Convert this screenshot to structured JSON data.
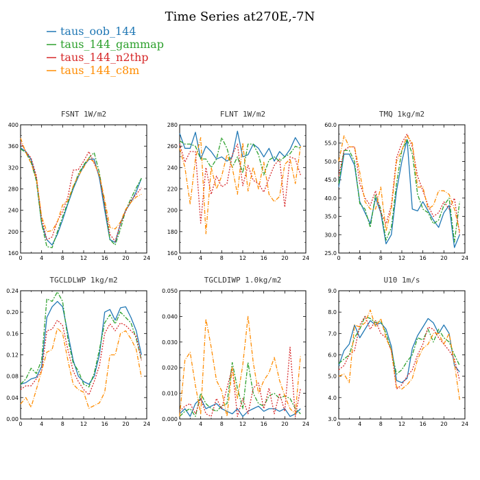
{
  "title": "Time Series at270E,-7N",
  "series_colors": [
    "#1f77b4",
    "#2ca02c",
    "#d62728",
    "#ff8c00"
  ],
  "legend": [
    "taus_oob_144",
    "taus_144_gammap",
    "taus_144_n2thp",
    "taus_144_c8m"
  ],
  "chart_data": [
    {
      "type": "line",
      "title": "FSNT  1W/m2",
      "xlim": [
        0,
        24
      ],
      "ylim": [
        160,
        400
      ],
      "xticks": [
        0,
        4,
        8,
        12,
        16,
        20,
        24
      ],
      "yticks": [
        "160",
        "200",
        "240",
        "280",
        "320",
        "360",
        "400"
      ],
      "x": [
        0,
        1,
        2,
        3,
        4,
        5,
        6,
        7,
        8,
        9,
        10,
        11,
        12,
        13,
        14,
        15,
        16,
        17,
        18,
        19,
        20,
        21,
        22,
        23
      ],
      "series": [
        {
          "name": "taus_oob_144",
          "values": [
            357,
            350,
            335,
            300,
            215,
            185,
            175,
            195,
            222,
            252,
            280,
            303,
            323,
            335,
            336,
            300,
            240,
            185,
            180,
            215,
            240,
            255,
            275,
            300
          ]
        },
        {
          "name": "taus_144_gammap",
          "values": [
            355,
            348,
            330,
            295,
            215,
            172,
            170,
            200,
            228,
            255,
            283,
            308,
            325,
            338,
            348,
            310,
            250,
            185,
            175,
            205,
            240,
            262,
            282,
            300
          ]
        },
        {
          "name": "taus_144_n2thp",
          "values": [
            367,
            350,
            338,
            305,
            225,
            185,
            190,
            220,
            238,
            265,
            315,
            316,
            332,
            350,
            328,
            305,
            250,
            195,
            182,
            215,
            238,
            258,
            270,
            282
          ]
        },
        {
          "name": "taus_144_c8m",
          "values": [
            375,
            348,
            328,
            300,
            228,
            200,
            202,
            218,
            250,
            258,
            285,
            305,
            320,
            338,
            330,
            305,
            260,
            208,
            205,
            218,
            242,
            255,
            265,
            270
          ]
        }
      ]
    },
    {
      "type": "line",
      "title": "FLNT  1W/m2",
      "xlim": [
        0,
        24
      ],
      "ylim": [
        160,
        280
      ],
      "xticks": [
        0,
        4,
        8,
        12,
        16,
        20,
        24
      ],
      "yticks": [
        "160",
        "180",
        "200",
        "220",
        "240",
        "260",
        "280"
      ],
      "x": [
        0,
        1,
        2,
        3,
        4,
        5,
        6,
        7,
        8,
        9,
        10,
        11,
        12,
        13,
        14,
        15,
        16,
        17,
        18,
        19,
        20,
        21,
        22,
        23
      ],
      "series": [
        {
          "name": "taus_oob_144",
          "values": [
            272,
            258,
            258,
            273,
            248,
            260,
            255,
            248,
            250,
            246,
            250,
            274,
            250,
            252,
            262,
            258,
            250,
            258,
            246,
            255,
            250,
            257,
            268,
            260
          ]
        },
        {
          "name": "taus_144_gammap",
          "values": [
            265,
            262,
            262,
            260,
            248,
            248,
            240,
            248,
            268,
            258,
            240,
            250,
            235,
            262,
            262,
            252,
            233,
            247,
            250,
            246,
            250,
            253,
            260,
            258
          ]
        },
        {
          "name": "taus_144_n2thp",
          "values": [
            262,
            245,
            255,
            255,
            188,
            240,
            215,
            232,
            222,
            225,
            252,
            262,
            223,
            242,
            228,
            225,
            217,
            230,
            242,
            248,
            203,
            250,
            248,
            233
          ]
        },
        {
          "name": "taus_144_c8m",
          "values": [
            258,
            240,
            206,
            248,
            268,
            178,
            240,
            220,
            232,
            252,
            240,
            215,
            263,
            218,
            240,
            220,
            245,
            215,
            208,
            213,
            243,
            248,
            225,
            260
          ]
        }
      ]
    },
    {
      "type": "line",
      "title": "TMQ  1kg/m2",
      "xlim": [
        0,
        24
      ],
      "ylim": [
        25,
        60
      ],
      "xticks": [
        0,
        4,
        8,
        12,
        16,
        20,
        24
      ],
      "yticks": [
        "25.0",
        "30.0",
        "35.0",
        "40.0",
        "45.0",
        "50.0",
        "55.0",
        "60.0"
      ],
      "x": [
        0,
        1,
        2,
        3,
        4,
        5,
        6,
        7,
        8,
        9,
        10,
        11,
        12,
        13,
        14,
        15,
        16,
        17,
        18,
        19,
        20,
        21,
        22,
        23
      ],
      "series": [
        {
          "name": "taus_oob_144",
          "values": [
            43,
            52,
            52,
            49,
            39,
            36,
            33,
            40,
            36,
            27.5,
            30,
            42,
            50,
            56,
            37,
            36.5,
            39,
            36.5,
            34,
            32,
            36,
            38,
            26.5,
            30
          ]
        },
        {
          "name": "taus_144_gammap",
          "values": [
            44,
            53,
            53,
            50,
            38.5,
            37,
            32,
            41,
            37,
            28.5,
            32,
            44,
            53,
            56,
            52,
            41,
            37,
            36,
            33,
            34,
            38,
            40,
            28,
            39
          ]
        },
        {
          "name": "taus_144_n2thp",
          "values": [
            46,
            53,
            54,
            54,
            44,
            40,
            38,
            42,
            36,
            33,
            38,
            51,
            55,
            57.5,
            54,
            46,
            42,
            38,
            35,
            36,
            39,
            37,
            40,
            30
          ]
        },
        {
          "name": "taus_144_c8m",
          "values": [
            50,
            57,
            54,
            54,
            47,
            39,
            37,
            37,
            43,
            31,
            37,
            50,
            53,
            57,
            55,
            43,
            43,
            37,
            38,
            42,
            42,
            41,
            37,
            31
          ]
        }
      ]
    },
    {
      "type": "line",
      "title": "TGCLDLWP  1kg/m2",
      "xlim": [
        0,
        24
      ],
      "ylim": [
        0,
        0.24
      ],
      "xticks": [
        0,
        4,
        8,
        12,
        16,
        20,
        24
      ],
      "yticks": [
        "0.00",
        "0.04",
        "0.08",
        "0.12",
        "0.16",
        "0.20",
        "0.24"
      ],
      "x": [
        0,
        1,
        2,
        3,
        4,
        5,
        6,
        7,
        8,
        9,
        10,
        11,
        12,
        13,
        14,
        15,
        16,
        17,
        18,
        19,
        20,
        21,
        22,
        23
      ],
      "series": [
        {
          "name": "taus_oob_144",
          "values": [
            0.065,
            0.068,
            0.075,
            0.078,
            0.098,
            0.19,
            0.21,
            0.22,
            0.21,
            0.16,
            0.11,
            0.08,
            0.07,
            0.065,
            0.08,
            0.12,
            0.2,
            0.205,
            0.185,
            0.208,
            0.21,
            0.19,
            0.165,
            0.12
          ]
        },
        {
          "name": "taus_144_gammap",
          "values": [
            0.065,
            0.075,
            0.095,
            0.085,
            0.11,
            0.225,
            0.22,
            0.238,
            0.22,
            0.15,
            0.105,
            0.09,
            0.065,
            0.06,
            0.085,
            0.13,
            0.18,
            0.195,
            0.178,
            0.2,
            0.19,
            0.18,
            0.15,
            0.11
          ]
        },
        {
          "name": "taus_144_n2thp",
          "values": [
            0.055,
            0.062,
            0.062,
            0.075,
            0.09,
            0.165,
            0.168,
            0.185,
            0.175,
            0.13,
            0.09,
            0.07,
            0.055,
            0.045,
            0.07,
            0.1,
            0.16,
            0.178,
            0.165,
            0.18,
            0.175,
            0.165,
            0.155,
            0.11
          ]
        },
        {
          "name": "taus_144_c8m",
          "values": [
            0.028,
            0.04,
            0.022,
            0.055,
            0.09,
            0.125,
            0.13,
            0.17,
            0.16,
            0.11,
            0.065,
            0.055,
            0.05,
            0.02,
            0.025,
            0.03,
            0.05,
            0.12,
            0.12,
            0.16,
            0.165,
            0.15,
            0.13,
            0.078
          ]
        }
      ]
    },
    {
      "type": "line",
      "title": "TGCLDIWP  1.0kg/m2",
      "xlim": [
        0,
        24
      ],
      "ylim": [
        0,
        0.05
      ],
      "xticks": [
        0,
        4,
        8,
        12,
        16,
        20,
        24
      ],
      "yticks": [
        "0.000",
        "0.010",
        "0.020",
        "0.030",
        "0.040",
        "0.050"
      ],
      "x": [
        0,
        1,
        2,
        3,
        4,
        5,
        6,
        7,
        8,
        9,
        10,
        11,
        12,
        13,
        14,
        15,
        16,
        17,
        18,
        19,
        20,
        21,
        22,
        23
      ],
      "series": [
        {
          "name": "taus_oob_144",
          "values": [
            0.002,
            0.004,
            0.001,
            0.006,
            0.008,
            0.004,
            0.005,
            0.006,
            0.004,
            0.003,
            0.002,
            0.004,
            0.001,
            0.003,
            0.004,
            0.005,
            0.003,
            0.004,
            0.004,
            0.003,
            0.004,
            0.001,
            0.002,
            0.004
          ]
        },
        {
          "name": "taus_144_gammap",
          "values": [
            0.001,
            0.003,
            0.004,
            0.001,
            0.01,
            0.006,
            0.004,
            0.003,
            0.005,
            0.006,
            0.022,
            0.012,
            0.004,
            0.022,
            0.01,
            0.006,
            0.005,
            0.009,
            0.01,
            0.008,
            0.009,
            0.008,
            0.004,
            0.002
          ]
        },
        {
          "name": "taus_144_n2thp",
          "values": [
            0.003,
            0.005,
            0.006,
            0.002,
            0.008,
            0.002,
            0.001,
            0.008,
            0.004,
            0.012,
            0.02,
            0.001,
            0.008,
            0.002,
            0.012,
            0.014,
            0.004,
            0.012,
            0.002,
            0.01,
            0.003,
            0.028,
            0.001,
            0.012
          ]
        },
        {
          "name": "taus_144_c8m",
          "values": [
            0.001,
            0.023,
            0.026,
            0.013,
            0.002,
            0.039,
            0.028,
            0.015,
            0.011,
            0.001,
            0.02,
            0.008,
            0.021,
            0.04,
            0.022,
            0.01,
            0.015,
            0.018,
            0.024,
            0.015,
            0.009,
            0.004,
            0.002,
            0.025
          ]
        }
      ]
    },
    {
      "type": "line",
      "title": "U10  1m/s",
      "xlim": [
        0,
        24
      ],
      "ylim": [
        3.0,
        9.0
      ],
      "xticks": [
        0,
        4,
        8,
        12,
        16,
        20,
        24
      ],
      "yticks": [
        "3.0",
        "4.0",
        "5.0",
        "6.0",
        "7.0",
        "8.0",
        "9.0"
      ],
      "x": [
        0,
        1,
        2,
        3,
        4,
        5,
        6,
        7,
        8,
        9,
        10,
        11,
        12,
        13,
        14,
        15,
        16,
        17,
        18,
        19,
        20,
        21,
        22,
        23
      ],
      "series": [
        {
          "name": "taus_oob_144",
          "values": [
            5.5,
            6.2,
            6.5,
            7.4,
            6.8,
            7.2,
            7.6,
            7.4,
            7.5,
            7.2,
            6.4,
            4.8,
            4.7,
            4.9,
            6.3,
            6.9,
            7.3,
            7.7,
            7.5,
            7.0,
            7.4,
            7.0,
            5.5,
            5.2
          ]
        },
        {
          "name": "taus_144_gammap",
          "values": [
            5.6,
            5.8,
            6.0,
            6.8,
            7.2,
            7.8,
            7.7,
            7.5,
            7.6,
            7.0,
            6.2,
            5.1,
            5.3,
            5.7,
            6.0,
            6.8,
            6.7,
            7.2,
            6.6,
            7.2,
            6.8,
            6.6,
            6.0,
            5.5
          ]
        },
        {
          "name": "taus_144_n2thp",
          "values": [
            5.3,
            5.5,
            6.0,
            6.2,
            7.4,
            7.8,
            7.2,
            7.6,
            7.0,
            6.8,
            6.2,
            4.4,
            4.6,
            5.0,
            5.3,
            6.0,
            6.5,
            7.3,
            7.2,
            6.8,
            6.5,
            6.2,
            5.8,
            4.8
          ]
        },
        {
          "name": "taus_144_c8m",
          "values": [
            5.0,
            5.1,
            4.7,
            7.4,
            7.3,
            7.5,
            8.1,
            7.3,
            7.7,
            6.8,
            6.2,
            4.5,
            4.4,
            4.6,
            4.9,
            5.8,
            6.3,
            6.5,
            7.0,
            7.0,
            6.5,
            7.0,
            5.6,
            3.9
          ]
        }
      ]
    }
  ]
}
